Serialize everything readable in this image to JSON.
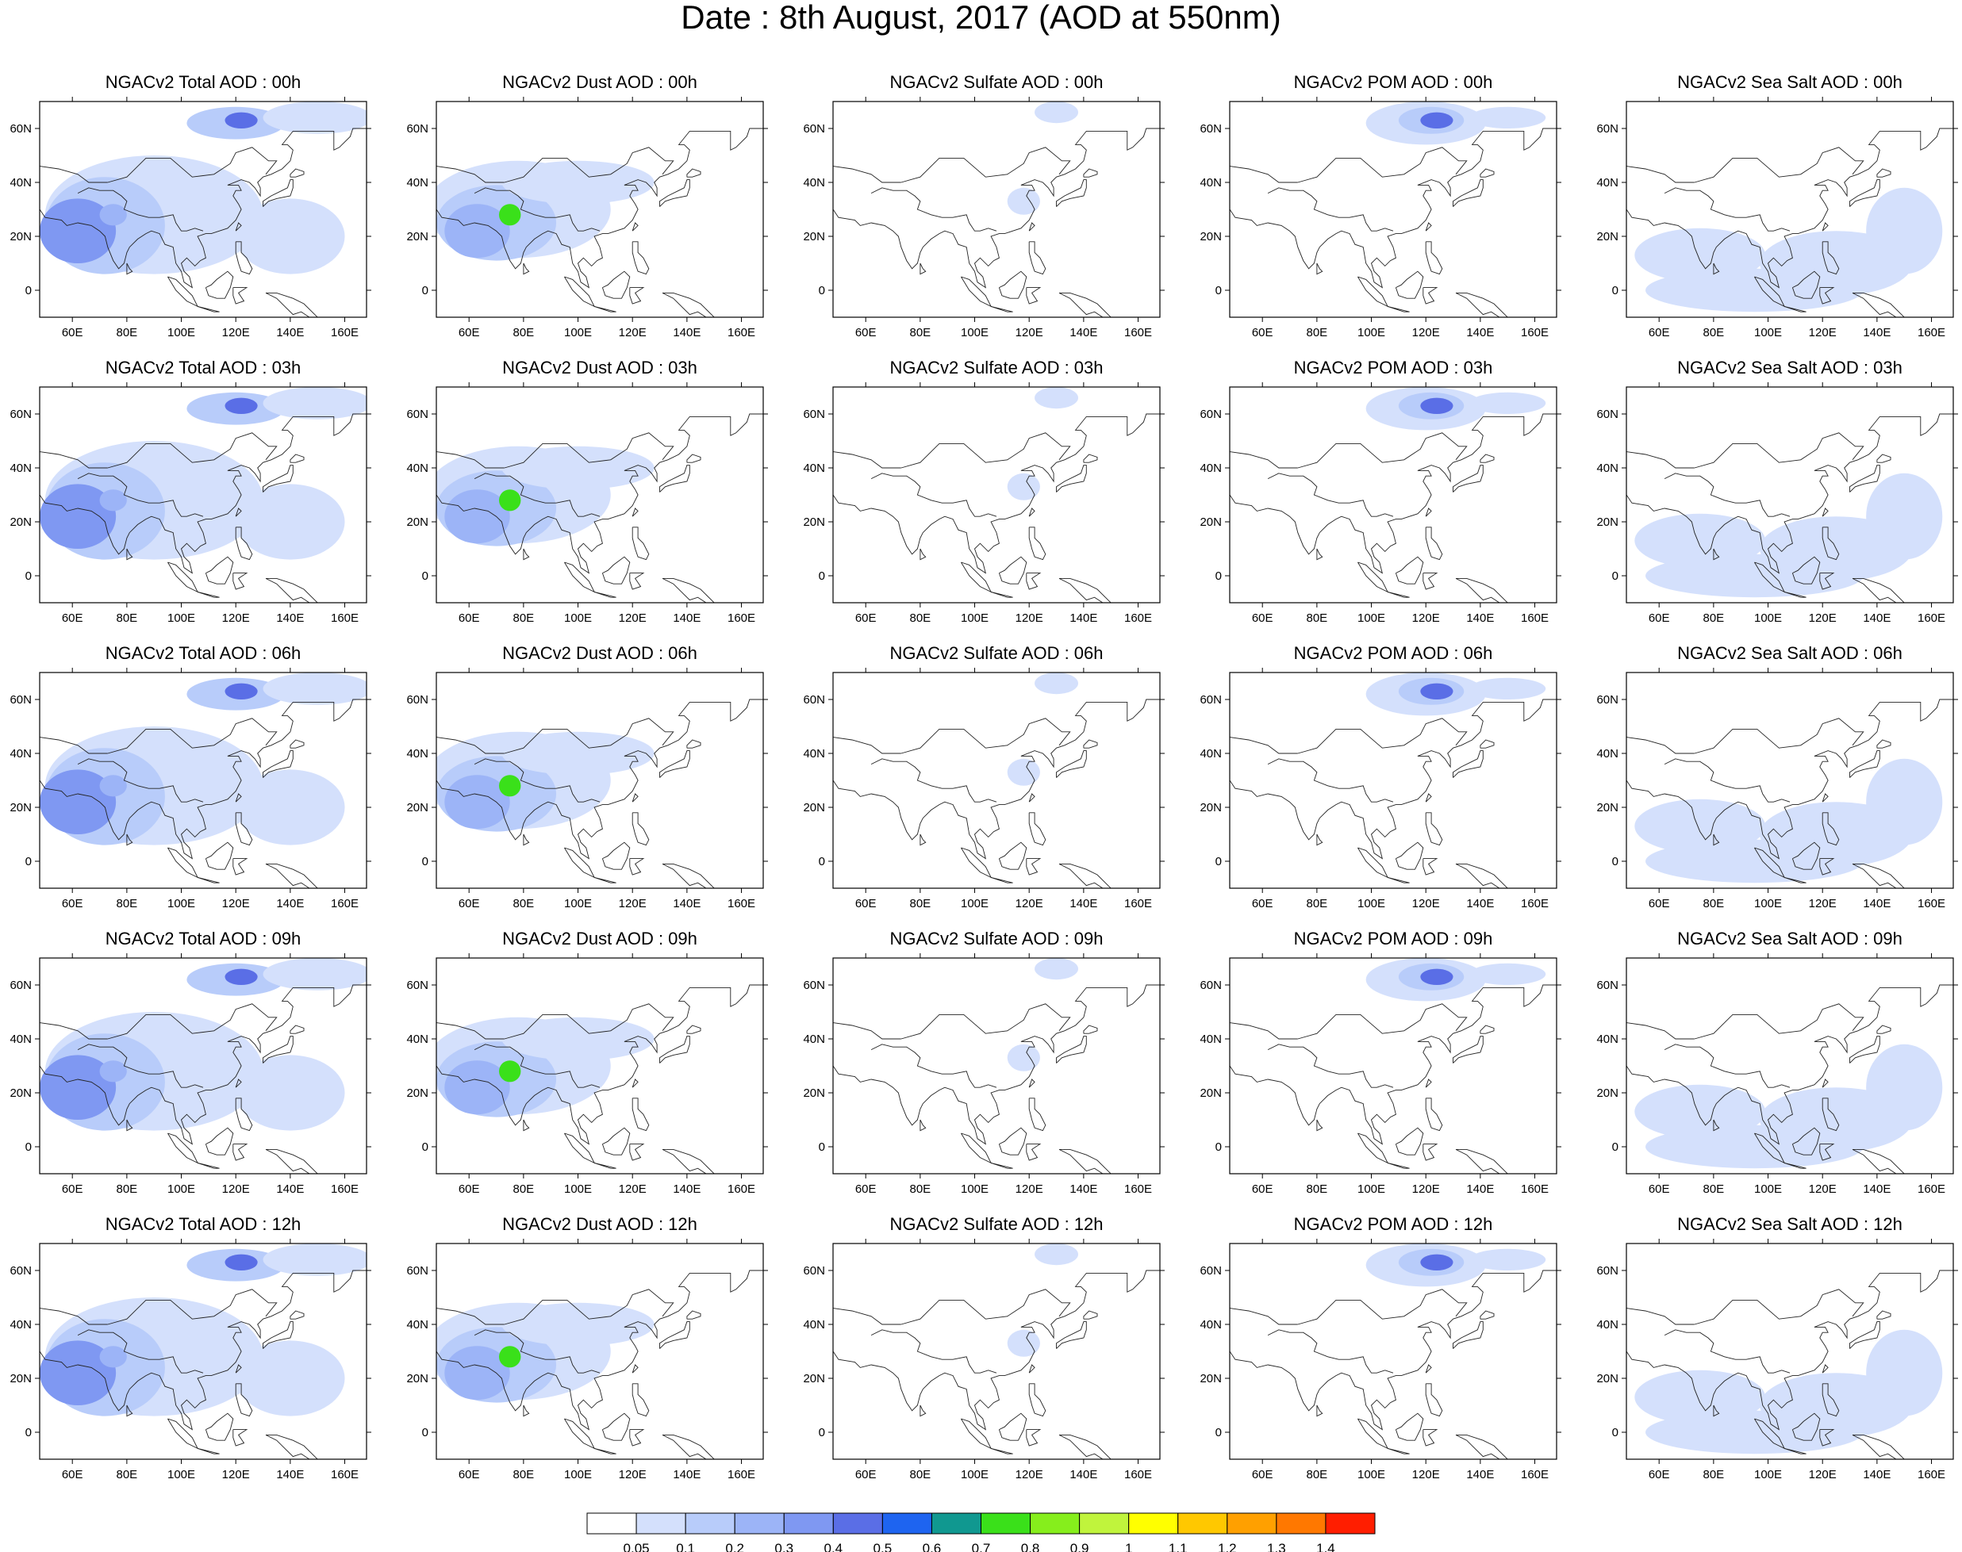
{
  "title": "Date : 8th August, 2017 (AOD at 550nm)",
  "panels": [
    [
      "NGACv2 Total AOD : 00h",
      "NGACv2 Dust AOD : 00h",
      "NGACv2 Sulfate AOD : 00h",
      "NGACv2 POM AOD : 00h",
      "NGACv2 Sea Salt AOD : 00h"
    ],
    [
      "NGACv2 Total AOD : 03h",
      "NGACv2 Dust AOD : 03h",
      "NGACv2 Sulfate AOD : 03h",
      "NGACv2 POM AOD : 03h",
      "NGACv2 Sea Salt AOD : 03h"
    ],
    [
      "NGACv2 Total AOD : 06h",
      "NGACv2 Dust AOD : 06h",
      "NGACv2 Sulfate AOD : 06h",
      "NGACv2 POM AOD : 06h",
      "NGACv2 Sea Salt AOD : 06h"
    ],
    [
      "NGACv2 Total AOD : 09h",
      "NGACv2 Dust AOD : 09h",
      "NGACv2 Sulfate AOD : 09h",
      "NGACv2 POM AOD : 09h",
      "NGACv2 Sea Salt  AOD : 09h"
    ],
    [
      "NGACv2 Total AOD  : 12h",
      "NGACv2 Dust AOD : 12h",
      "NGACv2 Sulfate AOD : 12h",
      "NGACv2 POM  AOD : 12h",
      "NGACv2 Sea Salt  AOD : 12h"
    ]
  ],
  "x_ticks": [
    "60E",
    "80E",
    "100E",
    "120E",
    "140E",
    "160E"
  ],
  "y_ticks": [
    "60N",
    "40N",
    "20N",
    "0"
  ],
  "lon_range": [
    48,
    168
  ],
  "lat_range": [
    -10,
    70
  ],
  "colorbar": {
    "labels": [
      "0.05",
      "0.1",
      "0.2",
      "0.3",
      "0.4",
      "0.5",
      "0.6",
      "0.7",
      "0.8",
      "0.9",
      "1",
      "1.1",
      "1.2",
      "1.3",
      "1.4"
    ],
    "colors": [
      "#ffffff",
      "#d4e0fc",
      "#b8ccfa",
      "#9cb4f7",
      "#7f98f2",
      "#5a6ee6",
      "#1e64f0",
      "#109890",
      "#3ae01a",
      "#86ee1c",
      "#c0f43c",
      "#ffff00",
      "#ffc800",
      "#ffa000",
      "#ff7800",
      "#ff1e00"
    ]
  }
}
